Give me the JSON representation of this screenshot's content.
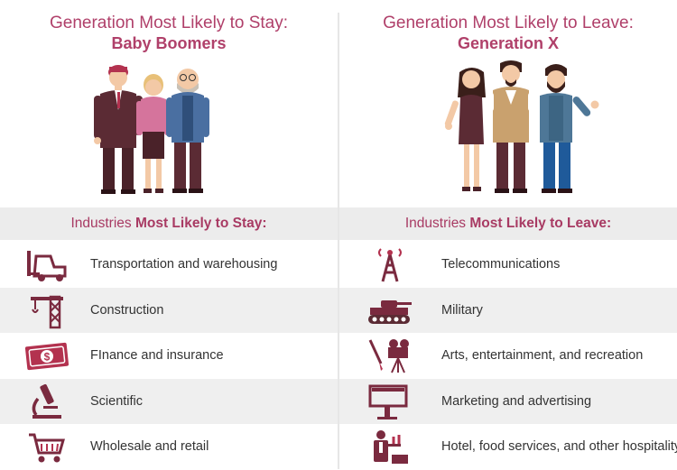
{
  "colors": {
    "accent": "#b0406a",
    "icon": "#7a2a3f",
    "row_shade": "#efefef",
    "header_bg": "#ececec"
  },
  "stay": {
    "title_line1": "Generation Most Likely to Stay:",
    "title_line2": "Baby Boomers",
    "industries_prefix": "Industries ",
    "industries_bold": "Most Likely to Stay:",
    "items": [
      {
        "label": "Transportation and warehousing",
        "icon": "forklift-icon"
      },
      {
        "label": "Construction",
        "icon": "crane-icon"
      },
      {
        "label": "FInance and insurance",
        "icon": "dollar-bill-icon"
      },
      {
        "label": "Scientific",
        "icon": "microscope-icon"
      },
      {
        "label": "Wholesale and retail",
        "icon": "shopping-cart-icon"
      }
    ]
  },
  "leave": {
    "title_line1": "Generation Most Likely to Leave:",
    "title_line2": "Generation X",
    "industries_prefix": "Industries ",
    "industries_bold": "Most Likely to Leave:",
    "items": [
      {
        "label": "Telecommunications",
        "icon": "radio-tower-icon"
      },
      {
        "label": "Military",
        "icon": "tank-icon"
      },
      {
        "label": "Arts, entertainment, and recreation",
        "icon": "brush-camera-icon"
      },
      {
        "label": "Marketing and advertising",
        "icon": "billboard-icon"
      },
      {
        "label": "Hotel, food services, and other hospitality",
        "icon": "waiter-icon"
      }
    ]
  }
}
